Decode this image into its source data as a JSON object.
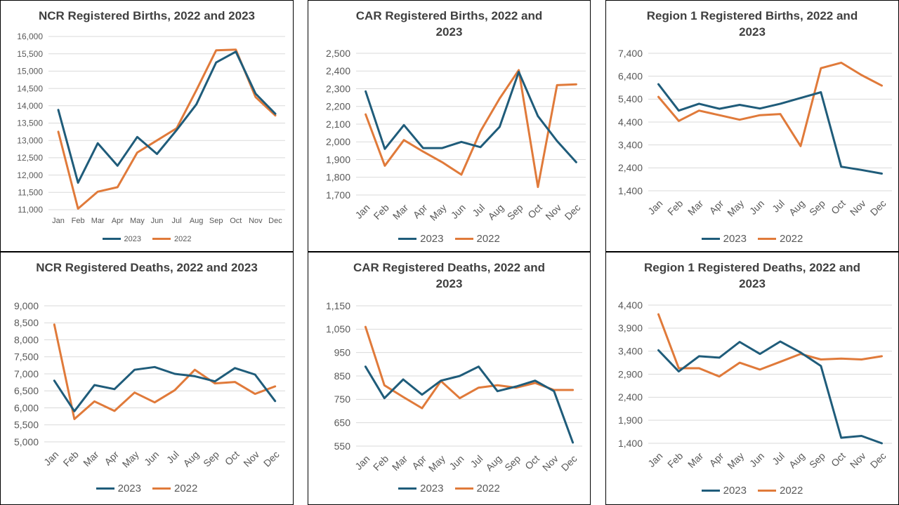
{
  "colors": {
    "2023": "#1f5c7a",
    "2022": "#e07a3a"
  },
  "chart_data": [
    {
      "id": "ncr-births",
      "type": "line",
      "title": "NCR Registered Births, 2022 and 2023",
      "categories": [
        "Jan",
        "Feb",
        "Mar",
        "Apr",
        "May",
        "Jun",
        "Jul",
        "Aug",
        "Sep",
        "Oct",
        "Nov",
        "Dec"
      ],
      "y_ticks": [
        "11,000",
        "11,500",
        "12,000",
        "12,500",
        "13,000",
        "13,500",
        "14,000",
        "14,500",
        "15,000",
        "15,500",
        "16,000"
      ],
      "ylim": [
        11000,
        16000
      ],
      "x_labels_rotated": false,
      "series": [
        {
          "name": "2023",
          "values": [
            13880,
            11780,
            12920,
            12270,
            13100,
            12610,
            13300,
            14040,
            15250,
            15560,
            14350,
            13770
          ]
        },
        {
          "name": "2022",
          "values": [
            13250,
            11030,
            11520,
            11650,
            12650,
            13000,
            13350,
            14450,
            15600,
            15620,
            14250,
            13720
          ]
        }
      ],
      "legend_position": "bottom",
      "grid": true
    },
    {
      "id": "car-births",
      "type": "line",
      "title": "CAR Registered Births, 2022 and 2023",
      "categories": [
        "Jan",
        "Feb",
        "Mar",
        "Apr",
        "May",
        "Jun",
        "Jul",
        "Aug",
        "Sep",
        "Oct",
        "Nov",
        "Dec"
      ],
      "y_ticks": [
        "1,700",
        "1,800",
        "1,900",
        "2,000",
        "2,100",
        "2,200",
        "2,300",
        "2,400",
        "2,500"
      ],
      "ylim": [
        1700,
        2500
      ],
      "x_labels_rotated": true,
      "series": [
        {
          "name": "2023",
          "values": [
            2285,
            1960,
            2095,
            1965,
            1965,
            2000,
            1970,
            2085,
            2395,
            2145,
            2005,
            1885
          ]
        },
        {
          "name": "2022",
          "values": [
            2155,
            1865,
            2010,
            1945,
            1885,
            1815,
            2060,
            2245,
            2405,
            1745,
            2320,
            2325
          ]
        }
      ],
      "legend_position": "bottom",
      "grid": true
    },
    {
      "id": "region1-births",
      "type": "line",
      "title": "Region 1  Registered Births, 2022 and 2023",
      "categories": [
        "Jan",
        "Feb",
        "Mar",
        "Apr",
        "May",
        "Jun",
        "Jul",
        "Aug",
        "Sep",
        "Oct",
        "Nov",
        "Dec"
      ],
      "y_ticks": [
        "1,400",
        "2,400",
        "3,400",
        "4,400",
        "5,400",
        "6,400",
        "7,400"
      ],
      "ylim": [
        1400,
        7400
      ],
      "x_labels_rotated": true,
      "series": [
        {
          "name": "2023",
          "values": [
            6050,
            4900,
            5200,
            4980,
            5150,
            4990,
            5200,
            5450,
            5700,
            2450,
            2310,
            2150
          ]
        },
        {
          "name": "2022",
          "values": [
            5500,
            4450,
            4900,
            4700,
            4500,
            4700,
            4750,
            3350,
            6750,
            6990,
            6450,
            5990
          ]
        }
      ],
      "legend_position": "bottom",
      "grid": true
    },
    {
      "id": "ncr-deaths",
      "type": "line",
      "title": "NCR Registered Deaths, 2022 and 2023",
      "categories": [
        "Jan",
        "Feb",
        "Mar",
        "Apr",
        "May",
        "Jun",
        "Jul",
        "Aug",
        "Sep",
        "Oct",
        "Nov",
        "Dec"
      ],
      "y_ticks": [
        "5,000",
        "5,500",
        "6,000",
        "6,500",
        "7,000",
        "7,500",
        "8,000",
        "8,500",
        "9,000"
      ],
      "ylim": [
        5000,
        9000
      ],
      "x_labels_rotated": true,
      "series": [
        {
          "name": "2023",
          "values": [
            6800,
            5900,
            6670,
            6550,
            7120,
            7200,
            7000,
            6930,
            6780,
            7170,
            6980,
            6200
          ]
        },
        {
          "name": "2022",
          "values": [
            8450,
            5670,
            6190,
            5910,
            6450,
            6160,
            6520,
            7120,
            6720,
            6760,
            6410,
            6630
          ]
        }
      ],
      "legend_position": "bottom",
      "grid": true
    },
    {
      "id": "car-deaths",
      "type": "line",
      "title": "CAR Registered Deaths, 2022 and 2023",
      "categories": [
        "Jan",
        "Feb",
        "Mar",
        "Apr",
        "May",
        "Jun",
        "Jul",
        "Aug",
        "Sep",
        "Oct",
        "Nov",
        "Dec"
      ],
      "y_ticks": [
        "550",
        "650",
        "750",
        "850",
        "950",
        "1,050",
        "1,150"
      ],
      "ylim": [
        550,
        1150
      ],
      "x_labels_rotated": true,
      "series": [
        {
          "name": "2023",
          "values": [
            890,
            755,
            835,
            770,
            830,
            850,
            890,
            785,
            805,
            830,
            785,
            565
          ]
        },
        {
          "name": "2022",
          "values": [
            1060,
            810,
            760,
            712,
            828,
            755,
            800,
            810,
            800,
            820,
            790,
            790
          ]
        }
      ],
      "legend_position": "bottom",
      "grid": true
    },
    {
      "id": "region1-deaths",
      "type": "line",
      "title": "Region 1  Registered Deaths, 2022 and 2023",
      "categories": [
        "Jan",
        "Feb",
        "Mar",
        "Apr",
        "May",
        "Jun",
        "Jul",
        "Aug",
        "Sep",
        "Oct",
        "Nov",
        "Dec"
      ],
      "y_ticks": [
        "1,400",
        "1,900",
        "2,400",
        "2,900",
        "3,400",
        "3,900",
        "4,400"
      ],
      "ylim": [
        1400,
        4400
      ],
      "x_labels_rotated": true,
      "series": [
        {
          "name": "2023",
          "values": [
            3420,
            2960,
            3290,
            3260,
            3600,
            3340,
            3610,
            3370,
            3080,
            1520,
            1560,
            1400
          ]
        },
        {
          "name": "2022",
          "values": [
            4200,
            3030,
            3030,
            2850,
            3150,
            3000,
            3170,
            3340,
            3220,
            3240,
            3220,
            3290
          ]
        }
      ],
      "legend_position": "bottom",
      "grid": true
    }
  ]
}
